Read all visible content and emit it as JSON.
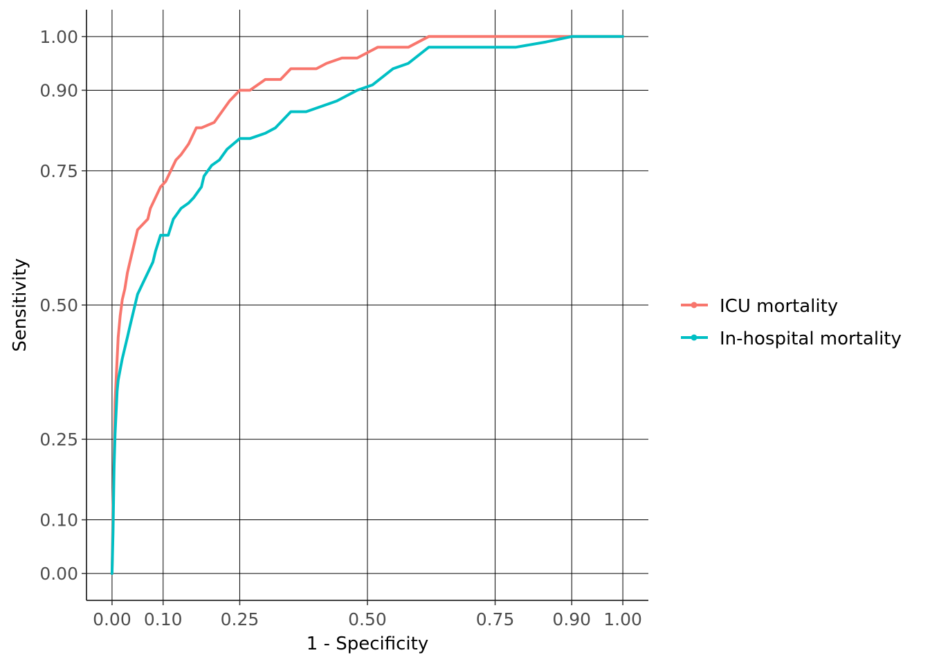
{
  "chart_data": {
    "type": "line",
    "xlabel": "1 - Specificity",
    "ylabel": "Sensitivity",
    "xlim": [
      -0.05,
      1.05
    ],
    "ylim": [
      -0.05,
      1.05
    ],
    "x_ticks": [
      0.0,
      0.1,
      0.25,
      0.5,
      0.75,
      0.9,
      1.0
    ],
    "x_tick_labels": [
      "0.00",
      "0.10",
      "0.25",
      "0.50",
      "0.75",
      "0.90",
      "1.00"
    ],
    "y_ticks": [
      0.0,
      0.1,
      0.25,
      0.5,
      0.75,
      0.9,
      1.0
    ],
    "y_tick_labels": [
      "0.00",
      "0.10",
      "0.25",
      "0.50",
      "0.75",
      "0.90",
      "1.00"
    ],
    "grid": true,
    "legend_position": "right",
    "series": [
      {
        "name": "ICU mortality",
        "color": "#F8766D",
        "x": [
          0.0,
          0.002,
          0.004,
          0.006,
          0.008,
          0.01,
          0.012,
          0.016,
          0.02,
          0.025,
          0.03,
          0.035,
          0.04,
          0.045,
          0.05,
          0.06,
          0.07,
          0.075,
          0.085,
          0.095,
          0.105,
          0.115,
          0.125,
          0.135,
          0.15,
          0.165,
          0.175,
          0.2,
          0.215,
          0.23,
          0.25,
          0.27,
          0.3,
          0.33,
          0.35,
          0.4,
          0.42,
          0.45,
          0.48,
          0.5,
          0.52,
          0.58,
          0.62,
          0.9,
          0.92,
          1.0
        ],
        "y": [
          0.0,
          0.12,
          0.22,
          0.32,
          0.36,
          0.4,
          0.44,
          0.48,
          0.51,
          0.53,
          0.56,
          0.58,
          0.6,
          0.62,
          0.64,
          0.65,
          0.66,
          0.68,
          0.7,
          0.72,
          0.73,
          0.75,
          0.77,
          0.78,
          0.8,
          0.83,
          0.83,
          0.84,
          0.86,
          0.88,
          0.9,
          0.9,
          0.92,
          0.92,
          0.94,
          0.94,
          0.95,
          0.96,
          0.96,
          0.97,
          0.98,
          0.98,
          1.0,
          1.0,
          1.0,
          1.0
        ]
      },
      {
        "name": "In-hospital mortality",
        "color": "#00BFC4",
        "x": [
          0.0,
          0.002,
          0.004,
          0.006,
          0.008,
          0.01,
          0.012,
          0.016,
          0.02,
          0.025,
          0.03,
          0.035,
          0.04,
          0.045,
          0.05,
          0.06,
          0.07,
          0.08,
          0.085,
          0.095,
          0.11,
          0.12,
          0.135,
          0.15,
          0.16,
          0.175,
          0.18,
          0.195,
          0.21,
          0.225,
          0.25,
          0.27,
          0.3,
          0.32,
          0.35,
          0.38,
          0.41,
          0.44,
          0.48,
          0.51,
          0.55,
          0.58,
          0.62,
          0.7,
          0.79,
          0.85,
          0.9,
          0.95,
          1.0
        ],
        "y": [
          0.0,
          0.08,
          0.2,
          0.26,
          0.3,
          0.34,
          0.36,
          0.38,
          0.4,
          0.42,
          0.44,
          0.46,
          0.48,
          0.5,
          0.52,
          0.54,
          0.56,
          0.58,
          0.6,
          0.63,
          0.63,
          0.66,
          0.68,
          0.69,
          0.7,
          0.72,
          0.74,
          0.76,
          0.77,
          0.79,
          0.81,
          0.81,
          0.82,
          0.83,
          0.86,
          0.86,
          0.87,
          0.88,
          0.9,
          0.91,
          0.94,
          0.95,
          0.98,
          0.98,
          0.98,
          0.99,
          1.0,
          1.0,
          1.0
        ]
      }
    ]
  }
}
